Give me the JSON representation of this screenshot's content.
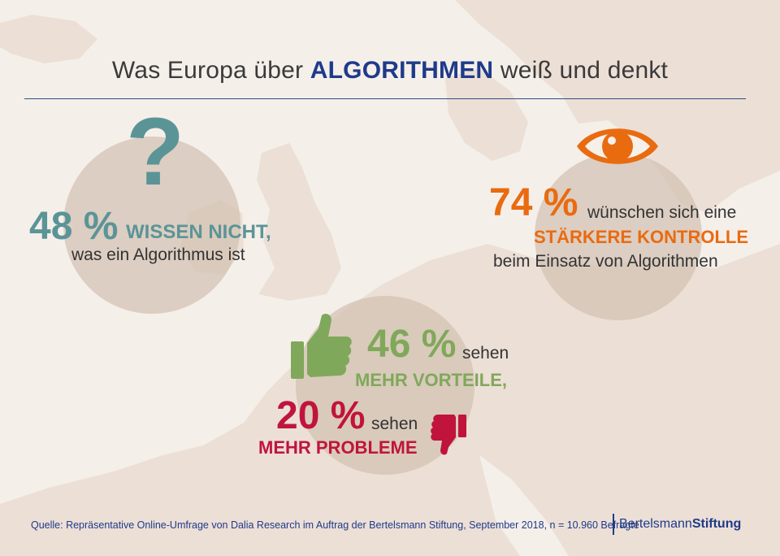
{
  "title": {
    "prefix": "Was Europa über ",
    "highlight": "ALGORITHMEN",
    "suffix": " weiß und denkt"
  },
  "stats": {
    "know_not": {
      "percent": "48 %",
      "label": "WISSEN NICHT,",
      "subtext": "was ein Algorithmus ist",
      "color": "#5b9497",
      "icon": "question-mark-icon",
      "glyph": "?"
    },
    "control": {
      "percent": "74 %",
      "label_line1": "wünschen sich eine",
      "label_highlight": "STÄRKERE KONTROLLE",
      "subtext": "beim Einsatz von Algorithmen",
      "color": "#e96b10",
      "icon": "eye-icon"
    },
    "advantages": {
      "percent": "46 %",
      "label_line1": "sehen",
      "label_highlight": "MEHR VORTEILE,",
      "color": "#80a85a",
      "icon": "thumbs-up-icon"
    },
    "problems": {
      "percent": "20 %",
      "label_line1": "sehen",
      "label_highlight": "MEHR PROBLEME",
      "color": "#c0143c",
      "icon": "thumbs-down-icon"
    }
  },
  "footer": {
    "source": "Quelle: Repräsentative Online-Umfrage von Dalia Research im Auftrag der Bertelsmann Stiftung, September 2018, n = 10.960 Befragte",
    "brand_part1": "Bertelsmann",
    "brand_part2": "Stiftung"
  },
  "colors": {
    "background": "#f6f0eb",
    "map_land": "#ecdfd6",
    "circle": "#d1c1b1",
    "accent_blue": "#1e3a8a"
  }
}
